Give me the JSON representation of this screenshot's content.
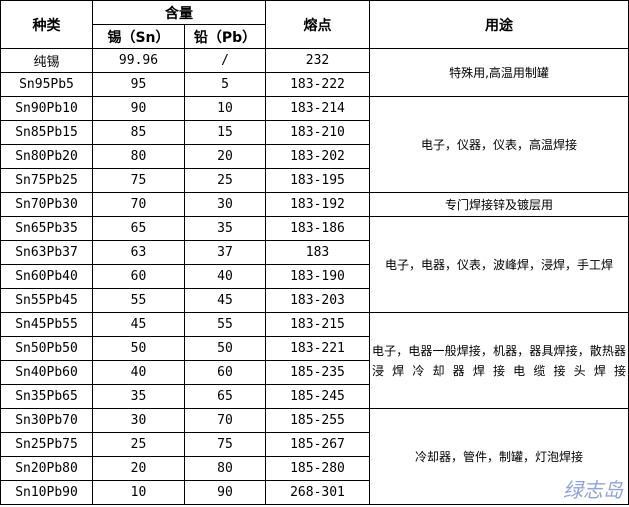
{
  "header": {
    "type": "种类",
    "content": "含量",
    "sn": "锡（Sn）",
    "pb": "铅（Pb）",
    "melting": "熔点",
    "usage": "用途"
  },
  "rows": [
    {
      "type": "纯锡",
      "sn": "99.96",
      "pb": "/",
      "melting": "232"
    },
    {
      "type": "Sn95Pb5",
      "sn": "95",
      "pb": "5",
      "melting": "183-222"
    },
    {
      "type": "Sn90Pb10",
      "sn": "90",
      "pb": "10",
      "melting": "183-214"
    },
    {
      "type": "Sn85Pb15",
      "sn": "85",
      "pb": "15",
      "melting": "183-210"
    },
    {
      "type": "Sn80Pb20",
      "sn": "80",
      "pb": "20",
      "melting": "183-202"
    },
    {
      "type": "Sn75Pb25",
      "sn": "75",
      "pb": "25",
      "melting": "183-195"
    },
    {
      "type": "Sn70Pb30",
      "sn": "70",
      "pb": "30",
      "melting": "183-192"
    },
    {
      "type": "Sn65Pb35",
      "sn": "65",
      "pb": "35",
      "melting": "183-186"
    },
    {
      "type": "Sn63Pb37",
      "sn": "63",
      "pb": "37",
      "melting": "183"
    },
    {
      "type": "Sn60Pb40",
      "sn": "60",
      "pb": "40",
      "melting": "183-190"
    },
    {
      "type": "Sn55Pb45",
      "sn": "55",
      "pb": "45",
      "melting": "183-203"
    },
    {
      "type": "Sn45Pb55",
      "sn": "45",
      "pb": "55",
      "melting": "183-215"
    },
    {
      "type": "Sn50Pb50",
      "sn": "50",
      "pb": "50",
      "melting": "183-221"
    },
    {
      "type": "Sn40Pb60",
      "sn": "40",
      "pb": "60",
      "melting": "185-235"
    },
    {
      "type": "Sn35Pb65",
      "sn": "35",
      "pb": "65",
      "melting": "185-245"
    },
    {
      "type": "Sn30Pb70",
      "sn": "30",
      "pb": "70",
      "melting": "185-255"
    },
    {
      "type": "Sn25Pb75",
      "sn": "25",
      "pb": "75",
      "melting": "185-267"
    },
    {
      "type": "Sn20Pb80",
      "sn": "20",
      "pb": "80",
      "melting": "185-280"
    },
    {
      "type": "Sn10Pb90",
      "sn": "10",
      "pb": "90",
      "melting": "268-301"
    }
  ],
  "usages": [
    {
      "start": 0,
      "span": 2,
      "text": "特殊用,高温用制罐"
    },
    {
      "start": 2,
      "span": 4,
      "text": "电子，仪器，仪表，高温焊接"
    },
    {
      "start": 6,
      "span": 1,
      "text": "专门焊接锌及镀层用"
    },
    {
      "start": 7,
      "span": 4,
      "text": "电子，电器，仪表，波峰焊，浸焊，手工焊"
    },
    {
      "start": 11,
      "span": 4,
      "text": "电子，电器一般焊接，机器，器具焊接，散热器浸焊冷却器焊接电缆接头焊接",
      "justify": true
    },
    {
      "start": 15,
      "span": 4,
      "text": "冷却器，管件，制罐，灯泡焊接"
    }
  ],
  "watermark": "绿志岛"
}
